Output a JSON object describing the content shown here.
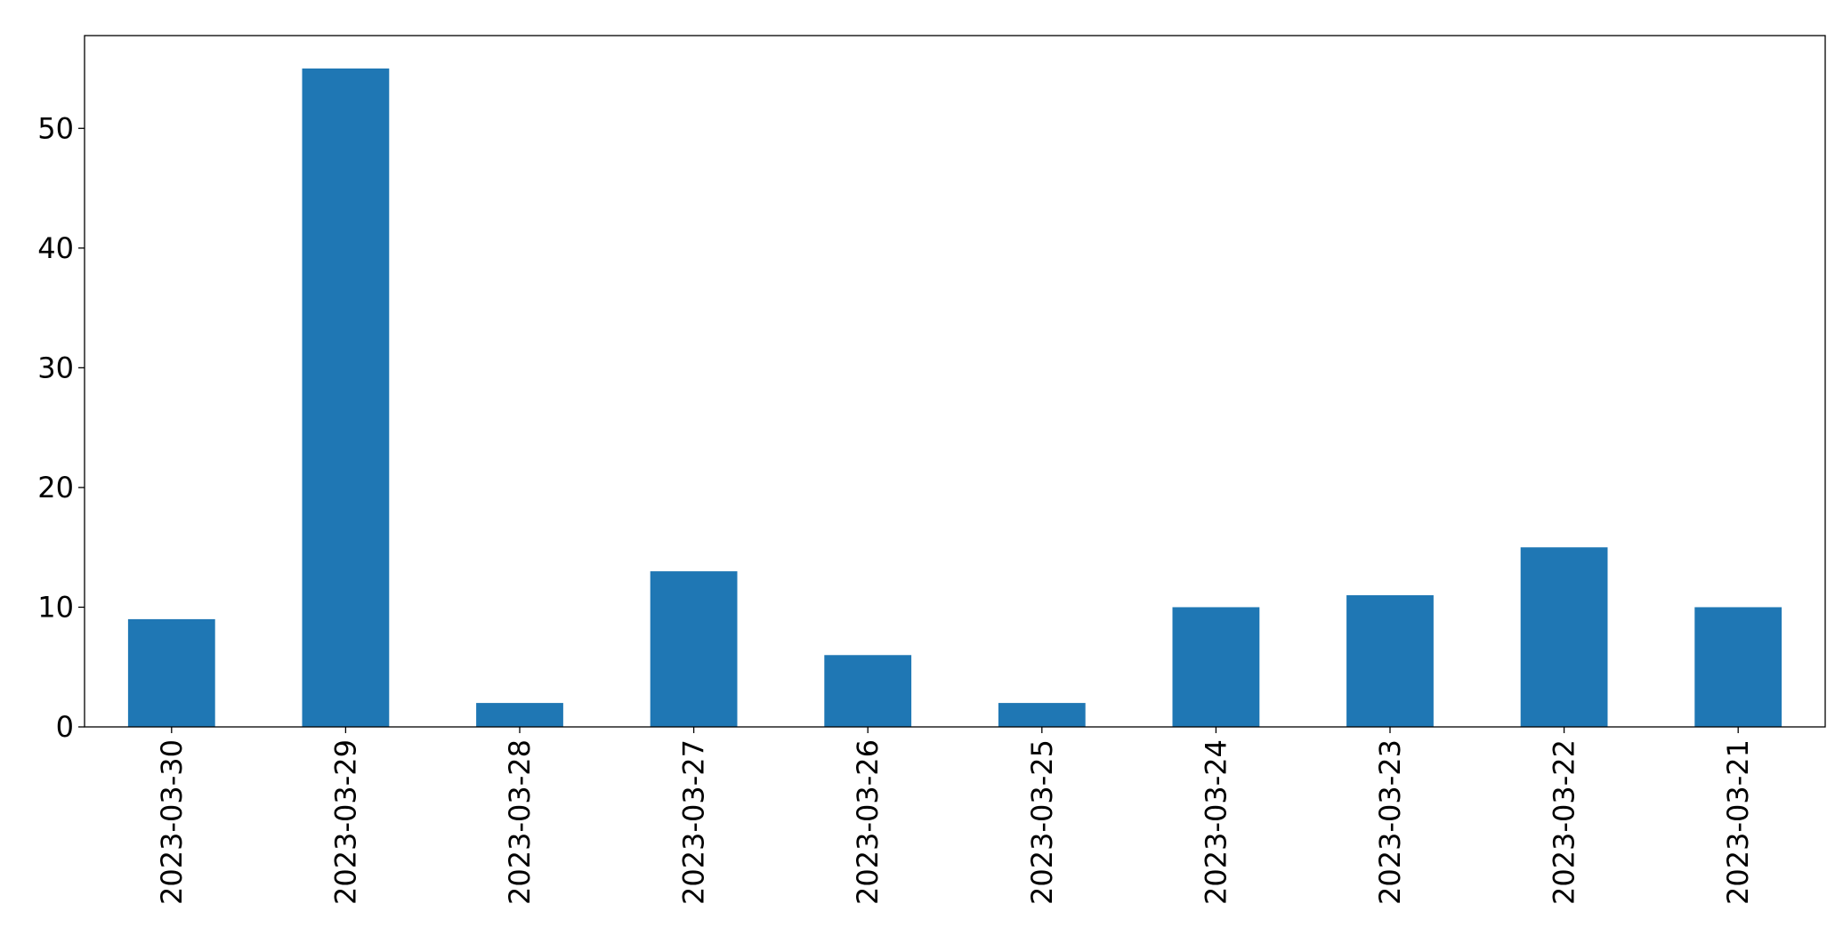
{
  "chart_data": {
    "type": "bar",
    "categories": [
      "2023-03-30",
      "2023-03-29",
      "2023-03-28",
      "2023-03-27",
      "2023-03-26",
      "2023-03-25",
      "2023-03-24",
      "2023-03-23",
      "2023-03-22",
      "2023-03-21"
    ],
    "values": [
      9,
      55,
      2,
      13,
      6,
      2,
      10,
      11,
      15,
      10
    ],
    "color": "#1f77b4",
    "ylim": [
      0,
      57.75
    ],
    "yticks": [
      0,
      10,
      20,
      30,
      40,
      50
    ],
    "grid": false
  }
}
